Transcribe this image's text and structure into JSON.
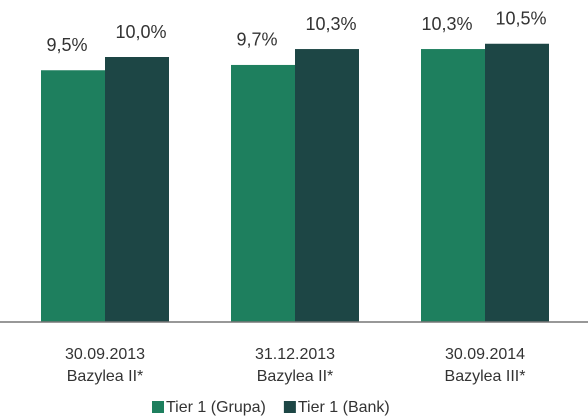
{
  "chart_data": {
    "type": "bar",
    "categories": [
      [
        "30.09.2013",
        "Bazylea II*"
      ],
      [
        "31.12.2013",
        "Bazylea II*"
      ],
      [
        "30.09.2014",
        "Bazylea III*"
      ]
    ],
    "series": [
      {
        "name": "Tier 1 (Grupa)",
        "color": "#1e7f5e",
        "values": [
          9.5,
          9.7,
          10.3
        ],
        "value_labels": [
          "9,5%",
          "9,7%",
          "10,3%"
        ]
      },
      {
        "name": "Tier 1 (Bank)",
        "color": "#1d4645",
        "values": [
          10.0,
          10.3,
          10.5
        ],
        "value_labels": [
          "10,0%",
          "10,3%",
          "10,5%"
        ]
      }
    ],
    "ylim": [
      0,
      12
    ]
  }
}
